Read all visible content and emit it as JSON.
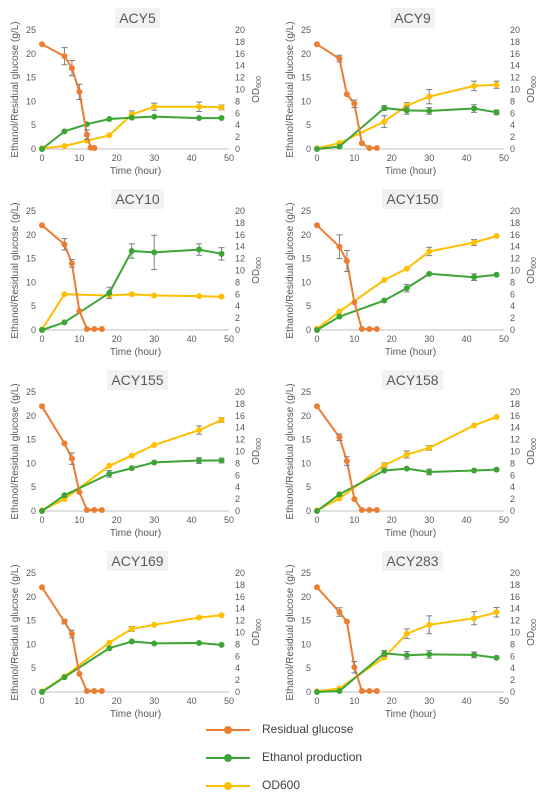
{
  "legend": {
    "glucose": "Residual glucose",
    "ethanol": "Ethanol production",
    "od": "OD600"
  },
  "colors": {
    "glucose": "#ED7D31",
    "ethanol": "#3DA535",
    "od": "#FFC000",
    "axis_text": "#595959",
    "title_bg": "#F2F2F2"
  },
  "chart_data": [
    {
      "type": "line",
      "title": "ACY5",
      "xlabel": "Time (hour)",
      "ylabel": "Ethanol/Residual glucose (g/L)",
      "y2label": "OD600",
      "xlim": [
        0,
        50
      ],
      "ylim": [
        0,
        25
      ],
      "y2lim": [
        0,
        20
      ],
      "xticks": [
        0,
        10,
        20,
        30,
        40,
        50
      ],
      "yticks": [
        0,
        5,
        10,
        15,
        20,
        25
      ],
      "y2ticks": [
        0,
        2,
        4,
        6,
        8,
        10,
        12,
        14,
        16,
        18,
        20
      ],
      "series": [
        {
          "name": "Residual glucose",
          "axis": "left",
          "x": [
            0,
            6,
            8,
            10,
            12,
            13,
            14
          ],
          "y": [
            22,
            19.5,
            17,
            12,
            3,
            0.3,
            0.2
          ],
          "err": [
            0,
            1.8,
            1.6,
            1.6,
            1,
            0,
            0
          ]
        },
        {
          "name": "Ethanol production",
          "axis": "left",
          "x": [
            0,
            6,
            12,
            18,
            24,
            30,
            42,
            48
          ],
          "y": [
            0,
            3.7,
            5.2,
            6.3,
            6.6,
            6.8,
            6.5,
            6.5
          ],
          "err": [
            0,
            0,
            0,
            0,
            0,
            0,
            0,
            0
          ]
        },
        {
          "name": "OD600",
          "axis": "right",
          "x": [
            0,
            6,
            12,
            18,
            24,
            30,
            42,
            48
          ],
          "y": [
            0.1,
            0.5,
            1.4,
            2.3,
            5.8,
            7.1,
            7.1,
            7.0
          ],
          "err": [
            0,
            0,
            0,
            0,
            0.6,
            0.6,
            0.8,
            0.4
          ]
        }
      ]
    },
    {
      "type": "line",
      "title": "ACY9",
      "xlabel": "Time (hour)",
      "ylabel": "Ethanol/Residual glucose (g/L)",
      "y2label": "OD600",
      "xlim": [
        0,
        50
      ],
      "ylim": [
        0,
        25
      ],
      "y2lim": [
        0,
        20
      ],
      "xticks": [
        0,
        10,
        20,
        30,
        40,
        50
      ],
      "yticks": [
        0,
        5,
        10,
        15,
        20,
        25
      ],
      "y2ticks": [
        0,
        2,
        4,
        6,
        8,
        10,
        12,
        14,
        16,
        18,
        20
      ],
      "series": [
        {
          "name": "Residual glucose",
          "axis": "left",
          "x": [
            0,
            6,
            8,
            10,
            12,
            14,
            16
          ],
          "y": [
            22,
            19,
            11.5,
            9.5,
            1.2,
            0.2,
            0.2
          ],
          "err": [
            0,
            0.7,
            0,
            0.8,
            0,
            0,
            0
          ]
        },
        {
          "name": "Ethanol production",
          "axis": "left",
          "x": [
            0,
            6,
            18,
            24,
            30,
            42,
            48
          ],
          "y": [
            0,
            0.5,
            8.6,
            8.1,
            8.0,
            8.5,
            7.7
          ],
          "err": [
            0,
            0,
            0.5,
            0.8,
            0.7,
            0.8,
            0.5
          ]
        },
        {
          "name": "OD600",
          "axis": "right",
          "x": [
            0,
            6,
            18,
            24,
            30,
            42,
            48
          ],
          "y": [
            0.1,
            1.0,
            4.6,
            7.3,
            8.8,
            10.6,
            10.8
          ],
          "err": [
            0,
            0,
            1.0,
            0.5,
            1.2,
            0.8,
            0.6
          ]
        }
      ]
    },
    {
      "type": "line",
      "title": "ACY10",
      "xlabel": "Time (hour)",
      "ylabel": "Ethanol/Residual glucose (g/L)",
      "y2label": "OD600",
      "xlim": [
        0,
        50
      ],
      "ylim": [
        0,
        25
      ],
      "y2lim": [
        0,
        20
      ],
      "xticks": [
        0,
        10,
        20,
        30,
        40,
        50
      ],
      "yticks": [
        0,
        5,
        10,
        15,
        20,
        25
      ],
      "y2ticks": [
        0,
        2,
        4,
        6,
        8,
        10,
        12,
        14,
        16,
        18,
        20
      ],
      "series": [
        {
          "name": "Residual glucose",
          "axis": "left",
          "x": [
            0,
            6,
            8,
            10,
            12,
            14,
            16
          ],
          "y": [
            22,
            18,
            14,
            4,
            0.2,
            0.2,
            0.2
          ],
          "err": [
            0,
            1.2,
            0.8,
            0,
            0,
            0,
            0
          ]
        },
        {
          "name": "Ethanol production",
          "axis": "left",
          "x": [
            0,
            6,
            18,
            24,
            30,
            42,
            48
          ],
          "y": [
            0,
            1.6,
            7.8,
            16.6,
            16.3,
            16.9,
            16.0
          ],
          "err": [
            0,
            0,
            1.2,
            1.5,
            3.6,
            1.2,
            1.3
          ]
        },
        {
          "name": "OD600",
          "axis": "right",
          "x": [
            0,
            6,
            18,
            24,
            30,
            42,
            48
          ],
          "y": [
            0.1,
            6.0,
            5.8,
            6.0,
            5.8,
            5.7,
            5.6
          ],
          "err": [
            0,
            0,
            0,
            0,
            0,
            0,
            0
          ]
        }
      ]
    },
    {
      "type": "line",
      "title": "ACY150",
      "xlabel": "Time (hour)",
      "ylabel": "Ethanol/Residual glucose (g/L)",
      "y2label": "OD600",
      "xlim": [
        0,
        50
      ],
      "ylim": [
        0,
        25
      ],
      "y2lim": [
        0,
        20
      ],
      "xticks": [
        0,
        10,
        20,
        30,
        40,
        50
      ],
      "yticks": [
        0,
        5,
        10,
        15,
        20,
        25
      ],
      "y2ticks": [
        0,
        2,
        4,
        6,
        8,
        10,
        12,
        14,
        16,
        18,
        20
      ],
      "series": [
        {
          "name": "Residual glucose",
          "axis": "left",
          "x": [
            0,
            6,
            8,
            10,
            12,
            14,
            16
          ],
          "y": [
            22,
            17.5,
            14.5,
            5.8,
            0.2,
            0.2,
            0.2
          ],
          "err": [
            0,
            2.5,
            2.2,
            0,
            0,
            0,
            0
          ]
        },
        {
          "name": "Ethanol production",
          "axis": "left",
          "x": [
            0,
            6,
            18,
            24,
            30,
            42,
            48
          ],
          "y": [
            0,
            2.8,
            6.2,
            8.8,
            11.8,
            11.1,
            11.6
          ],
          "err": [
            0,
            0,
            0,
            0.8,
            0,
            0.7,
            0
          ]
        },
        {
          "name": "OD600",
          "axis": "right",
          "x": [
            0,
            6,
            18,
            24,
            30,
            42,
            48
          ],
          "y": [
            0.2,
            3.1,
            8.4,
            10.3,
            13.2,
            14.7,
            15.8
          ],
          "err": [
            0,
            0,
            0,
            0,
            0.7,
            0.5,
            0
          ]
        }
      ]
    },
    {
      "type": "line",
      "title": "ACY155",
      "xlabel": "Time (hour)",
      "ylabel": "Ethanol/Residual glucose (g/L)",
      "y2label": "OD600",
      "xlim": [
        0,
        50
      ],
      "ylim": [
        0,
        25
      ],
      "y2lim": [
        0,
        20
      ],
      "xticks": [
        0,
        10,
        20,
        30,
        40,
        50
      ],
      "yticks": [
        0,
        5,
        10,
        15,
        20,
        25
      ],
      "y2ticks": [
        0,
        2,
        4,
        6,
        8,
        10,
        12,
        14,
        16,
        18,
        20
      ],
      "series": [
        {
          "name": "Residual glucose",
          "axis": "left",
          "x": [
            0,
            6,
            8,
            10,
            12,
            14,
            16
          ],
          "y": [
            22,
            14.2,
            11,
            4,
            0.2,
            0.2,
            0.2
          ],
          "err": [
            0,
            0,
            1.2,
            0,
            0,
            0,
            0
          ]
        },
        {
          "name": "Ethanol production",
          "axis": "left",
          "x": [
            0,
            6,
            18,
            24,
            30,
            42,
            48
          ],
          "y": [
            0,
            3.3,
            7.8,
            9.0,
            10.2,
            10.6,
            10.6
          ],
          "err": [
            0,
            0,
            0.7,
            0,
            0,
            0.6,
            0.5
          ]
        },
        {
          "name": "OD600",
          "axis": "right",
          "x": [
            0,
            6,
            18,
            24,
            30,
            42,
            48
          ],
          "y": [
            0.1,
            2.0,
            7.6,
            9.3,
            11.1,
            13.6,
            15.3
          ],
          "err": [
            0,
            0,
            0,
            0,
            0,
            0.7,
            0.4
          ]
        }
      ]
    },
    {
      "type": "line",
      "title": "ACY158",
      "xlabel": "Time (hour)",
      "ylabel": "Ethanol/Residual glucose (g/L)",
      "y2label": "OD600",
      "xlim": [
        0,
        50
      ],
      "ylim": [
        0,
        25
      ],
      "y2lim": [
        0,
        20
      ],
      "xticks": [
        0,
        10,
        20,
        30,
        40,
        50
      ],
      "yticks": [
        0,
        5,
        10,
        15,
        20,
        25
      ],
      "y2ticks": [
        0,
        2,
        4,
        6,
        8,
        10,
        12,
        14,
        16,
        18,
        20
      ],
      "series": [
        {
          "name": "Residual glucose",
          "axis": "left",
          "x": [
            0,
            6,
            8,
            10,
            12,
            14,
            16
          ],
          "y": [
            22,
            15.5,
            10.5,
            2.5,
            0.2,
            0.2,
            0.2
          ],
          "err": [
            0,
            0.7,
            0.9,
            0,
            0,
            0,
            0
          ]
        },
        {
          "name": "Ethanol production",
          "axis": "left",
          "x": [
            0,
            6,
            18,
            24,
            30,
            42,
            48
          ],
          "y": [
            0,
            3.5,
            8.5,
            8.9,
            8.2,
            8.5,
            8.7
          ],
          "err": [
            0,
            0,
            0,
            0,
            0.6,
            0,
            0
          ]
        },
        {
          "name": "OD600",
          "axis": "right",
          "x": [
            0,
            6,
            18,
            24,
            30,
            42,
            48
          ],
          "y": [
            0.1,
            2.1,
            7.7,
            9.5,
            10.6,
            14.4,
            15.8
          ],
          "err": [
            0,
            0,
            0.4,
            0.6,
            0.4,
            0,
            0
          ]
        }
      ]
    },
    {
      "type": "line",
      "title": "ACY169",
      "xlabel": "Time (hour)",
      "ylabel": "Ethanol/Residual glucose (g/L)",
      "y2label": "OD600",
      "xlim": [
        0,
        50
      ],
      "ylim": [
        0,
        25
      ],
      "y2lim": [
        0,
        20
      ],
      "xticks": [
        0,
        10,
        20,
        30,
        40,
        50
      ],
      "yticks": [
        0,
        5,
        10,
        15,
        20,
        25
      ],
      "y2ticks": [
        0,
        2,
        4,
        6,
        8,
        10,
        12,
        14,
        16,
        18,
        20
      ],
      "series": [
        {
          "name": "Residual glucose",
          "axis": "left",
          "x": [
            0,
            6,
            8,
            10,
            12,
            14,
            16
          ],
          "y": [
            22,
            14.8,
            12.2,
            3.8,
            0.2,
            0.2,
            0.2
          ],
          "err": [
            0,
            0.5,
            0.8,
            0,
            0,
            0,
            0
          ]
        },
        {
          "name": "Ethanol production",
          "axis": "left",
          "x": [
            0,
            6,
            18,
            24,
            30,
            42,
            48
          ],
          "y": [
            0,
            3.1,
            9.2,
            10.6,
            10.2,
            10.3,
            9.9
          ],
          "err": [
            0,
            0,
            0,
            0,
            0,
            0,
            0
          ]
        },
        {
          "name": "OD600",
          "axis": "right",
          "x": [
            0,
            6,
            18,
            24,
            30,
            42,
            48
          ],
          "y": [
            0.1,
            2.6,
            8.3,
            10.6,
            11.3,
            12.5,
            12.9
          ],
          "err": [
            0,
            0,
            0,
            0.4,
            0,
            0,
            0
          ]
        }
      ]
    },
    {
      "type": "line",
      "title": "ACY283",
      "xlabel": "Time (hour)",
      "ylabel": "Ethanol/Residual glucose (g/L)",
      "y2label": "OD600",
      "xlim": [
        0,
        50
      ],
      "ylim": [
        0,
        25
      ],
      "y2lim": [
        0,
        20
      ],
      "xticks": [
        0,
        10,
        20,
        30,
        40,
        50
      ],
      "yticks": [
        0,
        5,
        10,
        15,
        20,
        25
      ],
      "y2ticks": [
        0,
        2,
        4,
        6,
        8,
        10,
        12,
        14,
        16,
        18,
        20
      ],
      "series": [
        {
          "name": "Residual glucose",
          "axis": "left",
          "x": [
            0,
            6,
            8,
            10,
            12,
            14,
            16
          ],
          "y": [
            22,
            16.8,
            14.8,
            5.2,
            0.2,
            0.2,
            0.2
          ],
          "err": [
            0,
            0.9,
            0,
            1.2,
            0,
            0,
            0
          ]
        },
        {
          "name": "Ethanol production",
          "axis": "left",
          "x": [
            0,
            6,
            18,
            24,
            30,
            42,
            48
          ],
          "y": [
            0,
            0.2,
            8.1,
            7.7,
            7.9,
            7.8,
            7.2
          ],
          "err": [
            0,
            0,
            0.6,
            0.8,
            0.8,
            0.6,
            0
          ]
        },
        {
          "name": "OD600",
          "axis": "right",
          "x": [
            0,
            6,
            18,
            24,
            30,
            42,
            48
          ],
          "y": [
            0.1,
            0.6,
            5.8,
            9.8,
            11.3,
            12.4,
            13.4
          ],
          "err": [
            0,
            0,
            0,
            0.8,
            1.5,
            1.1,
            0.8
          ]
        }
      ]
    }
  ]
}
